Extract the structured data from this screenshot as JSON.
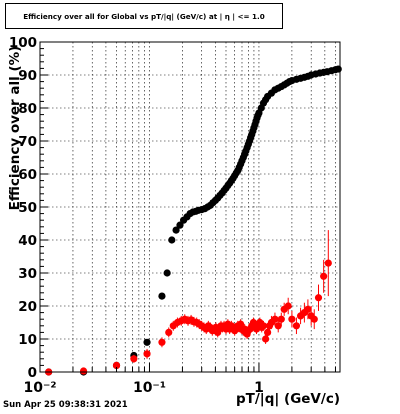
{
  "title": "Efficiency over all for Global vs pT/|q| (GeV/c) at | η | <= 1.0",
  "footer_date": "Sun Apr 25 09:38:31 2021",
  "chart_data": {
    "type": "scatter",
    "title": "Efficiency over all for Global vs pT/|q| (GeV/c) at | η | <= 1.0",
    "xlabel": "pT/|q| (GeV/c)",
    "ylabel": "Efficiency over all (%)",
    "xscale": "log",
    "xlim": [
      0.01,
      5.5
    ],
    "ylim": [
      0,
      100
    ],
    "x_tick_labels": [
      "10⁻²",
      "10⁻¹",
      "1"
    ],
    "y_tick_labels": [
      "0",
      "10",
      "20",
      "30",
      "40",
      "50",
      "60",
      "70",
      "80",
      "90",
      "100"
    ],
    "grid": true,
    "colors": {
      "black_series": "#000000",
      "red_series": "#ff0000"
    },
    "series": [
      {
        "color": "#000000",
        "points": [
          [
            0.012,
            0
          ],
          [
            0.025,
            0
          ],
          [
            0.05,
            2
          ],
          [
            0.072,
            5
          ],
          [
            0.095,
            9
          ],
          [
            0.13,
            23
          ],
          [
            0.145,
            30
          ],
          [
            0.16,
            40
          ],
          [
            0.175,
            43
          ],
          [
            0.19,
            44.5
          ],
          [
            0.205,
            46
          ],
          [
            0.22,
            47
          ],
          [
            0.235,
            48
          ],
          [
            0.25,
            48.5
          ],
          [
            0.265,
            48.7
          ],
          [
            0.28,
            49
          ],
          [
            0.3,
            49.2
          ],
          [
            0.32,
            49.5
          ],
          [
            0.34,
            50
          ],
          [
            0.36,
            50.5
          ],
          [
            0.38,
            51.3
          ],
          [
            0.4,
            52
          ],
          [
            0.42,
            52.7
          ],
          [
            0.44,
            53.5
          ],
          [
            0.46,
            54.2
          ],
          [
            0.48,
            55
          ],
          [
            0.5,
            55.7
          ],
          [
            0.52,
            56.5
          ],
          [
            0.54,
            57.2
          ],
          [
            0.56,
            58
          ],
          [
            0.58,
            58.7
          ],
          [
            0.6,
            59.5
          ],
          [
            0.62,
            60.3
          ],
          [
            0.64,
            61
          ],
          [
            0.66,
            62
          ],
          [
            0.68,
            63
          ],
          [
            0.7,
            64
          ],
          [
            0.72,
            65
          ],
          [
            0.74,
            66
          ],
          [
            0.76,
            67
          ],
          [
            0.78,
            68
          ],
          [
            0.8,
            69
          ],
          [
            0.82,
            70
          ],
          [
            0.84,
            71
          ],
          [
            0.86,
            72
          ],
          [
            0.88,
            73
          ],
          [
            0.9,
            74
          ],
          [
            0.92,
            75
          ],
          [
            0.94,
            76
          ],
          [
            0.96,
            77
          ],
          [
            0.98,
            77.8
          ],
          [
            1.0,
            78.5
          ],
          [
            1.05,
            80
          ],
          [
            1.1,
            81.5
          ],
          [
            1.15,
            82.5
          ],
          [
            1.2,
            83.5
          ],
          [
            1.3,
            84.5
          ],
          [
            1.4,
            85.5
          ],
          [
            1.5,
            86
          ],
          [
            1.6,
            86.5
          ],
          [
            1.7,
            87
          ],
          [
            1.8,
            87.5
          ],
          [
            1.9,
            88
          ],
          [
            2.0,
            88.3
          ],
          [
            2.2,
            88.7
          ],
          [
            2.4,
            89
          ],
          [
            2.6,
            89.3
          ],
          [
            2.8,
            89.6
          ],
          [
            3.0,
            90
          ],
          [
            3.3,
            90.3
          ],
          [
            3.6,
            90.6
          ],
          [
            3.9,
            90.8
          ],
          [
            4.2,
            91
          ],
          [
            4.6,
            91.3
          ],
          [
            5.0,
            91.6
          ],
          [
            5.3,
            91.8
          ]
        ]
      },
      {
        "color": "#ff0000",
        "points": [
          [
            0.012,
            0,
            0
          ],
          [
            0.025,
            0.3,
            0.6
          ],
          [
            0.05,
            2,
            0.8
          ],
          [
            0.072,
            4,
            1.2
          ],
          [
            0.095,
            5.5,
            1.5
          ],
          [
            0.13,
            9,
            1.5
          ],
          [
            0.15,
            12,
            1.5
          ],
          [
            0.165,
            14,
            1.5
          ],
          [
            0.18,
            15,
            1.5
          ],
          [
            0.195,
            15.5,
            1.5
          ],
          [
            0.21,
            16,
            1.5
          ],
          [
            0.225,
            15.5,
            1.5
          ],
          [
            0.24,
            15.8,
            1.5
          ],
          [
            0.255,
            15.2,
            1.5
          ],
          [
            0.27,
            15,
            1.5
          ],
          [
            0.285,
            14.5,
            1.5
          ],
          [
            0.3,
            14,
            1.5
          ],
          [
            0.315,
            13.5,
            1.5
          ],
          [
            0.33,
            13,
            1.5
          ],
          [
            0.345,
            14,
            1.5
          ],
          [
            0.36,
            13.5,
            1.5
          ],
          [
            0.375,
            12.5,
            1.5
          ],
          [
            0.39,
            13,
            1.5
          ],
          [
            0.405,
            13.5,
            1.5
          ],
          [
            0.42,
            12,
            1.5
          ],
          [
            0.435,
            13,
            1.5
          ],
          [
            0.45,
            14,
            1.5
          ],
          [
            0.465,
            13.5,
            1.5
          ],
          [
            0.48,
            14,
            1.5
          ],
          [
            0.5,
            13,
            1.5
          ],
          [
            0.52,
            14.5,
            1.5
          ],
          [
            0.54,
            13,
            1.5
          ],
          [
            0.56,
            14,
            1.5
          ],
          [
            0.58,
            13.5,
            1.5
          ],
          [
            0.6,
            12.5,
            1.5
          ],
          [
            0.62,
            13,
            1.5
          ],
          [
            0.64,
            14,
            1.5
          ],
          [
            0.66,
            13.5,
            1.5
          ],
          [
            0.68,
            14.5,
            1.5
          ],
          [
            0.7,
            13,
            1.5
          ],
          [
            0.72,
            12.5,
            1.5
          ],
          [
            0.74,
            13,
            1.5
          ],
          [
            0.76,
            12,
            1.5
          ],
          [
            0.78,
            11.5,
            1.5
          ],
          [
            0.8,
            12.5,
            1.5
          ],
          [
            0.83,
            13,
            1.5
          ],
          [
            0.86,
            14,
            1.5
          ],
          [
            0.89,
            15,
            1.5
          ],
          [
            0.92,
            14,
            1.5
          ],
          [
            0.95,
            13,
            1.5
          ],
          [
            0.98,
            14.5,
            1.5
          ],
          [
            1.02,
            15,
            1.5
          ],
          [
            1.06,
            13.5,
            1.5
          ],
          [
            1.1,
            14,
            1.5
          ],
          [
            1.15,
            10,
            1.5
          ],
          [
            1.2,
            12,
            1.5
          ],
          [
            1.25,
            14,
            1.5
          ],
          [
            1.3,
            15,
            2
          ],
          [
            1.4,
            16,
            2
          ],
          [
            1.5,
            14,
            2
          ],
          [
            1.6,
            16,
            2
          ],
          [
            1.7,
            19,
            2
          ],
          [
            1.85,
            20,
            2.5
          ],
          [
            2.0,
            16,
            2.5
          ],
          [
            2.2,
            14,
            2.5
          ],
          [
            2.4,
            17,
            2.5
          ],
          [
            2.6,
            18,
            3
          ],
          [
            2.8,
            19,
            3
          ],
          [
            3.0,
            17,
            3
          ],
          [
            3.2,
            16,
            3
          ],
          [
            3.5,
            22.5,
            4
          ],
          [
            3.9,
            29,
            5
          ],
          [
            4.3,
            33,
            10
          ]
        ]
      }
    ]
  }
}
